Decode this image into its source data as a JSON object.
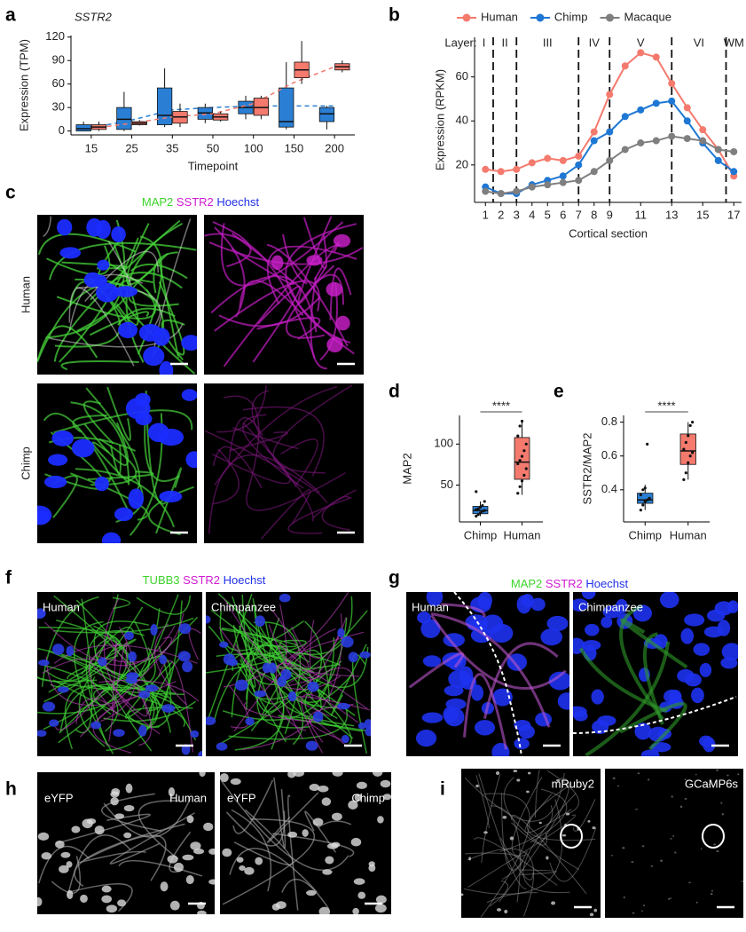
{
  "chart_data": [
    {
      "type": "box",
      "panel_label": "a",
      "title": "SSTR2",
      "x_label": "Timepoint",
      "y_label": "Expression (TPM)",
      "categories": [
        "15",
        "25",
        "35",
        "50",
        "100",
        "150",
        "200"
      ],
      "ylim": [
        -5,
        122
      ],
      "yticks": [
        0,
        30,
        60,
        90,
        120
      ],
      "series": [
        {
          "color": "#2a7fd4",
          "q1": [
            0,
            2,
            8,
            15,
            22,
            5,
            12
          ],
          "median": [
            3,
            15,
            20,
            23,
            30,
            12,
            22
          ],
          "q3": [
            8,
            30,
            55,
            30,
            38,
            55,
            30
          ],
          "whisker_low": [
            0,
            0,
            5,
            10,
            15,
            2,
            2
          ],
          "whisker_high": [
            12,
            50,
            80,
            35,
            45,
            88,
            32
          ],
          "trend": [
            4,
            14,
            27,
            30,
            32,
            32,
            32
          ]
        },
        {
          "color": "#f47a6e",
          "q1": [
            2,
            8,
            10,
            14,
            20,
            68,
            78
          ],
          "median": [
            5,
            10,
            18,
            18,
            30,
            78,
            82
          ],
          "q3": [
            8,
            12,
            25,
            22,
            42,
            88,
            86
          ],
          "whisker_low": [
            0,
            7,
            5,
            12,
            15,
            60,
            75
          ],
          "whisker_high": [
            12,
            14,
            35,
            25,
            45,
            115,
            90
          ],
          "trend": [
            3,
            10,
            18,
            22,
            35,
            62,
            82
          ]
        }
      ]
    },
    {
      "type": "line",
      "panel_label": "b",
      "x_label": "Cortical section",
      "y_label": "Expression (RPKM)",
      "x": [
        1,
        2,
        3,
        4,
        5,
        6,
        7,
        8,
        9,
        10,
        11,
        12,
        13,
        14,
        15,
        16,
        17
      ],
      "xlim": [
        0.3,
        17.5
      ],
      "xticks": [
        1,
        2,
        3,
        4,
        5,
        6,
        7,
        8,
        9,
        11,
        13,
        15,
        17
      ],
      "ylim": [
        3,
        78
      ],
      "yticks": [
        20,
        40,
        60
      ],
      "layer_title": "Layer:",
      "layers": [
        "I",
        "II",
        "III",
        "IV",
        "V",
        "VI",
        "WM"
      ],
      "layer_boundaries": [
        1.5,
        3,
        7,
        9,
        13,
        16.5
      ],
      "series": [
        {
          "name": "Human",
          "color": "#f47a6e",
          "values": [
            18,
            17,
            18,
            21,
            23,
            22,
            24,
            35,
            52,
            65,
            71,
            69,
            57,
            46,
            36,
            27,
            15
          ]
        },
        {
          "name": "Chimp",
          "color": "#1f77d4",
          "values": [
            10,
            7,
            7,
            11,
            13,
            15,
            20,
            31,
            35,
            42,
            45,
            48,
            49,
            40,
            30,
            22,
            17
          ]
        },
        {
          "name": "Macaque",
          "color": "#7f7f7f",
          "values": [
            8,
            7,
            8,
            10,
            11,
            12,
            13,
            17,
            22,
            27,
            30,
            31,
            33,
            32,
            31,
            27,
            26
          ]
        }
      ]
    },
    {
      "type": "box",
      "panel_label": "d",
      "y_label": "MAP2",
      "significance": "****",
      "categories": [
        "Chimp",
        "Human"
      ],
      "ylim": [
        5,
        135
      ],
      "yticks": [
        50,
        100
      ],
      "colors": [
        "#2a7fd4",
        "#f47a6e"
      ],
      "q1": [
        15,
        57
      ],
      "median": [
        19,
        78
      ],
      "q3": [
        24,
        108
      ],
      "whisker_low": [
        12,
        38
      ],
      "whisker_high": [
        30,
        128
      ],
      "points": [
        [
          12,
          14,
          16,
          18,
          19,
          20,
          21,
          23,
          25,
          30,
          42
        ],
        [
          40,
          48,
          55,
          62,
          70,
          76,
          80,
          85,
          92,
          100,
          110,
          122,
          128
        ]
      ]
    },
    {
      "type": "box",
      "panel_label": "e",
      "y_label": "SSTR2/MAP2",
      "significance": "****",
      "categories": [
        "Chimp",
        "Human"
      ],
      "ylim": [
        0.21,
        0.84
      ],
      "yticks": [
        0.4,
        0.6,
        0.8
      ],
      "colors": [
        "#2a7fd4",
        "#f47a6e"
      ],
      "q1": [
        0.32,
        0.55
      ],
      "median": [
        0.34,
        0.63
      ],
      "q3": [
        0.38,
        0.73
      ],
      "whisker_low": [
        0.28,
        0.46
      ],
      "whisker_high": [
        0.43,
        0.8
      ],
      "points": [
        [
          0.28,
          0.31,
          0.33,
          0.34,
          0.35,
          0.37,
          0.4,
          0.41,
          0.67
        ],
        [
          0.46,
          0.5,
          0.56,
          0.6,
          0.62,
          0.64,
          0.68,
          0.72,
          0.78,
          0.8
        ]
      ]
    }
  ],
  "panels": [
    {
      "label": "c",
      "stain": [
        "MAP2",
        "SSTR2",
        "Hoechst"
      ],
      "rows": [
        "Human",
        "Chimp"
      ]
    },
    {
      "label": "f",
      "stain": [
        "TUBB3",
        "SSTR2",
        "Hoechst"
      ],
      "images": [
        "Human",
        "Chimpanzee"
      ]
    },
    {
      "label": "g",
      "stain": [
        "MAP2",
        "SSTR2",
        "Hoechst"
      ],
      "images": [
        "Human",
        "Chimpanzee"
      ]
    },
    {
      "label": "h",
      "images": [
        [
          "eYFP",
          "Human"
        ],
        [
          "eYFP",
          "Chimp"
        ]
      ]
    },
    {
      "label": "i",
      "images": [
        "mRuby2",
        "GCaMP6s"
      ]
    }
  ]
}
